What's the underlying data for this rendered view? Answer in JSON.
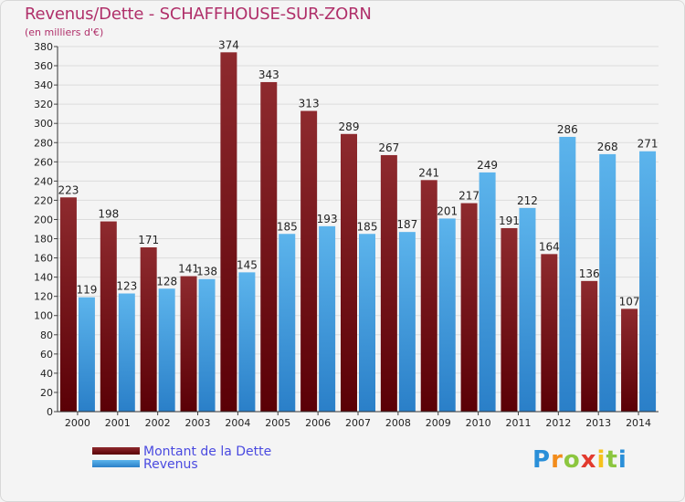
{
  "chart_data": {
    "type": "bar",
    "title": "Revenus/Dette - SCHAFFHOUSE-SUR-ZORN",
    "subtitle": "(en milliers d'€)",
    "categories": [
      "2000",
      "2001",
      "2002",
      "2003",
      "2004",
      "2005",
      "2006",
      "2007",
      "2008",
      "2009",
      "2010",
      "2011",
      "2012",
      "2013",
      "2014"
    ],
    "series": [
      {
        "name": "Montant de la Dette",
        "values": [
          223,
          198,
          171,
          141,
          374,
          343,
          313,
          289,
          267,
          241,
          217,
          191,
          164,
          136,
          107
        ],
        "color": "#7a1518"
      },
      {
        "name": "Revenus",
        "values": [
          119,
          123,
          128,
          138,
          145,
          185,
          193,
          185,
          187,
          201,
          249,
          212,
          286,
          268,
          271
        ],
        "color": "#3d9de3"
      }
    ],
    "ylim": [
      0,
      380
    ],
    "ytick_step": 20,
    "grid": true,
    "legend_position": "bottom-left",
    "xlabel": "",
    "ylabel": ""
  },
  "logo": {
    "letters": [
      "P",
      "r",
      "o",
      "x",
      "i",
      "t",
      "i"
    ],
    "colors": [
      "#2a8fd8",
      "#f28c1c",
      "#8cc63f",
      "#e23a2e",
      "#f6c21c",
      "#8cc63f",
      "#2a8fd8"
    ]
  }
}
